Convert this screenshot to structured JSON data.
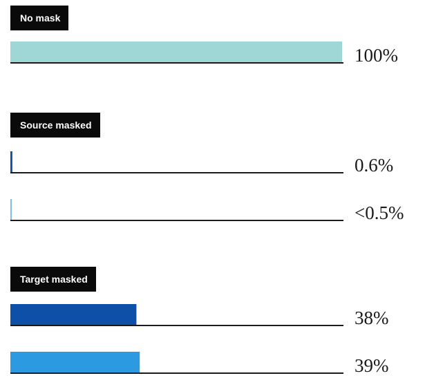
{
  "chart_data": {
    "type": "bar",
    "orientation": "horizontal",
    "xlim": [
      0,
      100
    ],
    "groups": [
      {
        "label": "No mask",
        "bars": [
          {
            "value": 100,
            "label": "100%",
            "color": "#9fd6d6"
          }
        ]
      },
      {
        "label": "Source masked",
        "bars": [
          {
            "value": 0.6,
            "label": "0.6%",
            "color": "#0e4fa8"
          },
          {
            "value": 0.3,
            "label": "<0.5%",
            "color": "#7fc0e8"
          }
        ]
      },
      {
        "label": "Target masked",
        "bars": [
          {
            "value": 38,
            "label": "38%",
            "color": "#0e4fa8"
          },
          {
            "value": 39,
            "label": "39%",
            "color": "#2c9ae0"
          }
        ]
      }
    ]
  }
}
